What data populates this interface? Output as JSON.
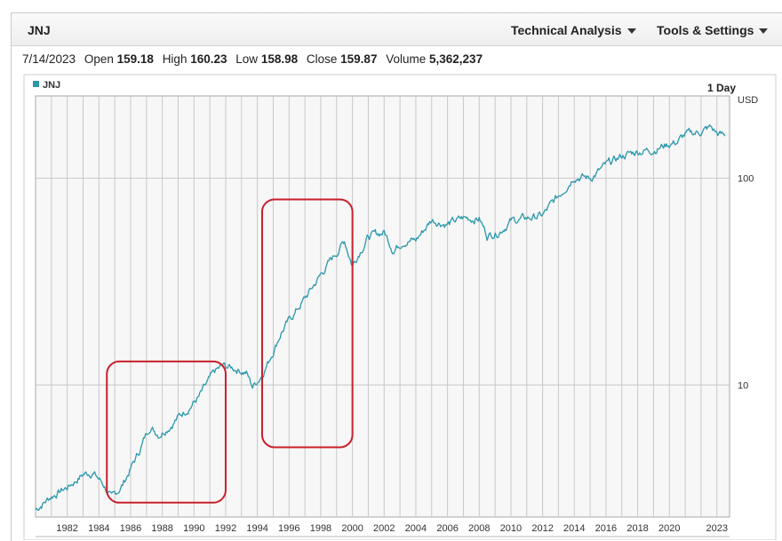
{
  "header": {
    "ticker": "JNJ",
    "technical_analysis_label": "Technical Analysis",
    "tools_settings_label": "Tools & Settings"
  },
  "quote": {
    "date": "7/14/2023",
    "open_label": "Open",
    "open": "159.18",
    "high_label": "High",
    "high": "160.23",
    "low_label": "Low",
    "low": "158.98",
    "close_label": "Close",
    "close": "159.87",
    "volume_label": "Volume",
    "volume": "5,362,237"
  },
  "colors": {
    "series": "#2a97ad",
    "highlight_box": "#c8202b",
    "grid": "#c8c8c8"
  },
  "chart_data": {
    "type": "line",
    "title": "",
    "legend": [
      "JNJ"
    ],
    "period_label": "1 Day",
    "currency_label": "USD",
    "y_scale": "log",
    "ylim": [
      2.3,
      250
    ],
    "xlim": [
      1980.0,
      2023.8
    ],
    "grid": true,
    "x_tick_labels": [
      "1982",
      "1984",
      "1986",
      "1988",
      "1990",
      "1992",
      "1994",
      "1996",
      "1998",
      "2000",
      "2002",
      "2004",
      "2006",
      "2008",
      "2010",
      "2012",
      "2014",
      "2016",
      "2018",
      "2020",
      "2023"
    ],
    "y_tick_labels": [
      "10",
      "100"
    ],
    "series": [
      {
        "name": "JNJ",
        "x": [
          1980.0,
          1981.0,
          1982.0,
          1983.0,
          1983.6,
          1984.3,
          1984.8,
          1985.5,
          1986.5,
          1987.2,
          1987.8,
          1988.5,
          1989.5,
          1990.3,
          1991.3,
          1991.8,
          1992.7,
          1993.3,
          1993.7,
          1994.2,
          1994.7,
          1995.5,
          1996.3,
          1997.2,
          1998.2,
          1999.2,
          1999.5,
          2000.0,
          2000.5,
          2001.0,
          2002.0,
          2002.6,
          2003.2,
          2004.0,
          2005.0,
          2006.0,
          2007.0,
          2008.0,
          2008.5,
          2009.2,
          2010.0,
          2011.0,
          2012.0,
          2013.0,
          2014.0,
          2015.0,
          2016.0,
          2017.0,
          2018.0,
          2019.0,
          2020.0,
          2020.5,
          2021.0,
          2022.0,
          2022.6,
          2023.0,
          2023.5
        ],
        "y": [
          2.5,
          2.9,
          3.2,
          3.7,
          3.8,
          3.3,
          2.8,
          3.3,
          4.7,
          6.3,
          5.8,
          6.4,
          7.6,
          8.7,
          11.5,
          12.3,
          12.0,
          11.5,
          9.8,
          11.0,
          13.0,
          18.0,
          22.0,
          27.5,
          36.0,
          46.0,
          50.0,
          38.0,
          45.0,
          52.0,
          55.0,
          45.0,
          50.0,
          50.0,
          63.0,
          60.0,
          64.0,
          64.0,
          53.0,
          55.0,
          62.0,
          64.0,
          66.0,
          82.0,
          103.0,
          100.0,
          115.0,
          128.0,
          135.0,
          138.0,
          147.0,
          150.0,
          162.0,
          168.0,
          176.0,
          165.0,
          159.87
        ]
      }
    ],
    "annotations": [
      {
        "type": "rect",
        "x_range": [
          1984.5,
          1992.0
        ],
        "y_range": [
          2.7,
          13.0
        ]
      },
      {
        "type": "rect",
        "x_range": [
          1994.3,
          2000.0
        ],
        "y_range": [
          5.0,
          79.0
        ]
      }
    ]
  }
}
